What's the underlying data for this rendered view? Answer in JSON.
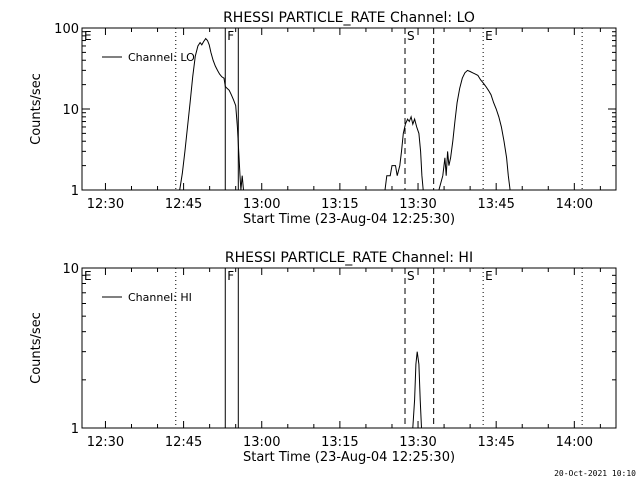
{
  "footer": {
    "timestamp": "20-Oct-2021 10:10"
  },
  "chart_data": [
    {
      "type": "line",
      "title": "RHESSI PARTICLE_RATE Channel: LO",
      "xlabel": "Start Time (23-Aug-04 12:25:30)",
      "ylabel": "Counts/sec",
      "yscale": "log",
      "xlim": [
        "12:25:30",
        "14:08:00"
      ],
      "ylim": [
        1,
        100
      ],
      "x_ticks": [
        "12:30",
        "12:45",
        "13:00",
        "13:15",
        "13:30",
        "13:45",
        "14:00"
      ],
      "y_ticks": [
        "1",
        "10",
        "100"
      ],
      "legend": {
        "position": "top-left",
        "entries": [
          "Channel: LO"
        ]
      },
      "markers": [
        {
          "label": "E",
          "time": "12:25:30",
          "style": "dotted"
        },
        {
          "label": "",
          "time": "12:43:30",
          "style": "dotted"
        },
        {
          "label": "F",
          "time": "12:53:00",
          "style": "solid"
        },
        {
          "label": "",
          "time": "12:55:30",
          "style": "solid"
        },
        {
          "label": "S",
          "time": "13:27:30",
          "style": "dashed"
        },
        {
          "label": "",
          "time": "13:33:00",
          "style": "dashed"
        },
        {
          "label": "E",
          "time": "13:42:30",
          "style": "dotted"
        },
        {
          "label": "",
          "time": "14:01:30",
          "style": "dotted"
        }
      ],
      "series": [
        {
          "name": "Channel: LO",
          "segments": [
            [
              [
                "12:44:15",
                1
              ],
              [
                "12:44:45",
                1.6
              ],
              [
                "12:45:15",
                3.0
              ],
              [
                "12:45:45",
                6.0
              ],
              [
                "12:46:15",
                12
              ],
              [
                "12:46:45",
                25
              ],
              [
                "12:47:15",
                45
              ],
              [
                "12:47:45",
                60
              ],
              [
                "12:48:10",
                66
              ],
              [
                "12:48:30",
                62
              ],
              [
                "12:48:50",
                68
              ],
              [
                "12:49:15",
                74
              ],
              [
                "12:49:35",
                70
              ],
              [
                "12:49:55",
                62
              ],
              [
                "12:50:15",
                50
              ],
              [
                "12:50:40",
                40
              ],
              [
                "12:51:05",
                34
              ],
              [
                "12:51:30",
                30
              ],
              [
                "12:51:55",
                27
              ],
              [
                "12:52:20",
                25
              ],
              [
                "12:52:45",
                24
              ],
              [
                "12:53:00",
                19
              ],
              [
                "12:53:20",
                18
              ],
              [
                "12:53:45",
                17
              ],
              [
                "12:54:10",
                15
              ],
              [
                "12:54:35",
                13
              ],
              [
                "12:55:00",
                11
              ],
              [
                "12:55:20",
                6
              ],
              [
                "12:55:35",
                3.0
              ],
              [
                "12:55:50",
                1.5
              ],
              [
                "12:56:00",
                1
              ],
              [
                "12:56:15",
                1.5
              ],
              [
                "12:56:30",
                1
              ]
            ],
            [
              [
                "13:23:00",
                1
              ],
              [
                "13:23:40",
                1
              ],
              [
                "13:24:00",
                1.5
              ],
              [
                "13:24:40",
                1.5
              ],
              [
                "13:25:00",
                2.0
              ],
              [
                "13:25:40",
                2.0
              ],
              [
                "13:26:00",
                1.5
              ],
              [
                "13:26:30",
                2.0
              ],
              [
                "13:26:50",
                3.0
              ],
              [
                "13:27:10",
                5.0
              ],
              [
                "13:27:35",
                6.5
              ],
              [
                "13:28:00",
                7.5
              ],
              [
                "13:28:20",
                7.0
              ],
              [
                "13:28:40",
                8.0
              ],
              [
                "13:29:00",
                6.5
              ],
              [
                "13:29:20",
                7.5
              ],
              [
                "13:29:45",
                6.0
              ],
              [
                "13:30:10",
                5.0
              ],
              [
                "13:30:30",
                3.0
              ],
              [
                "13:30:45",
                1.5
              ],
              [
                "13:31:00",
                1
              ]
            ],
            [
              [
                "13:34:00",
                1
              ],
              [
                "13:34:45",
                1.5
              ],
              [
                "13:35:10",
                2.5
              ],
              [
                "13:35:25",
                1.5
              ],
              [
                "13:35:40",
                3.0
              ],
              [
                "13:35:55",
                2.0
              ],
              [
                "13:36:15",
                2.5
              ],
              [
                "13:36:40",
                4.0
              ],
              [
                "13:37:05",
                7.0
              ],
              [
                "13:37:30",
                12
              ],
              [
                "13:38:00",
                18
              ],
              [
                "13:38:30",
                24
              ],
              [
                "13:39:00",
                28
              ],
              [
                "13:39:30",
                30
              ],
              [
                "13:40:00",
                29
              ],
              [
                "13:40:30",
                28
              ],
              [
                "13:41:00",
                27
              ],
              [
                "13:41:30",
                26
              ],
              [
                "13:42:00",
                23
              ],
              [
                "13:42:30",
                21
              ],
              [
                "13:43:00",
                19
              ],
              [
                "13:43:30",
                17
              ],
              [
                "13:44:00",
                15
              ],
              [
                "13:44:30",
                12
              ],
              [
                "13:45:00",
                10
              ],
              [
                "13:45:30",
                8
              ],
              [
                "13:46:00",
                6
              ],
              [
                "13:46:30",
                4
              ],
              [
                "13:47:00",
                2.5
              ],
              [
                "13:47:20",
                1.5
              ],
              [
                "13:47:40",
                1
              ]
            ]
          ]
        }
      ]
    },
    {
      "type": "line",
      "title": "RHESSI PARTICLE_RATE Channel: HI",
      "xlabel": "Start Time (23-Aug-04 12:25:30)",
      "ylabel": "Counts/sec",
      "yscale": "log",
      "xlim": [
        "12:25:30",
        "14:08:00"
      ],
      "ylim": [
        1,
        10
      ],
      "x_ticks": [
        "12:30",
        "12:45",
        "13:00",
        "13:15",
        "13:30",
        "13:45",
        "14:00"
      ],
      "y_ticks": [
        "1",
        "10"
      ],
      "legend": {
        "position": "top-left",
        "entries": [
          "Channel: HI"
        ]
      },
      "markers": [
        {
          "label": "E",
          "time": "12:25:30",
          "style": "dotted"
        },
        {
          "label": "",
          "time": "12:43:30",
          "style": "dotted"
        },
        {
          "label": "F",
          "time": "12:53:00",
          "style": "solid"
        },
        {
          "label": "",
          "time": "12:55:30",
          "style": "solid"
        },
        {
          "label": "S",
          "time": "13:27:30",
          "style": "dashed"
        },
        {
          "label": "",
          "time": "13:33:00",
          "style": "dashed"
        },
        {
          "label": "E",
          "time": "13:42:30",
          "style": "dotted"
        },
        {
          "label": "",
          "time": "14:01:30",
          "style": "dotted"
        }
      ],
      "series": [
        {
          "name": "Channel: HI",
          "segments": [
            [
              [
                "13:29:00",
                1
              ],
              [
                "13:29:20",
                1.5
              ],
              [
                "13:29:35",
                2.5
              ],
              [
                "13:29:50",
                3.0
              ],
              [
                "13:30:10",
                2.5
              ],
              [
                "13:30:25",
                1.5
              ],
              [
                "13:30:40",
                1
              ]
            ]
          ]
        }
      ]
    }
  ]
}
